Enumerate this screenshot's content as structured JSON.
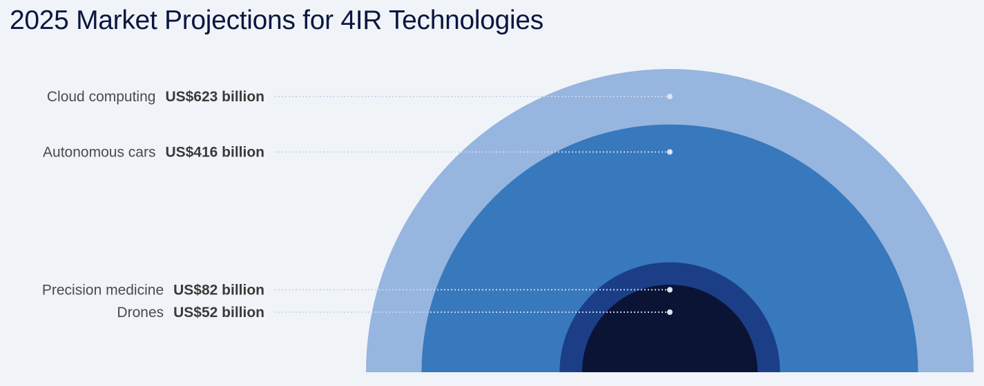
{
  "title": "2025 Market Projections for 4IR Technologies",
  "chart_data": {
    "type": "nested-semicircles",
    "title": "2025 Market Projections for 4IR Technologies",
    "unit": "US$ billion",
    "series": [
      {
        "name": "Cloud computing",
        "value": 623,
        "value_label": "US$623 billion",
        "color": "#96b5df"
      },
      {
        "name": "Autonomous cars",
        "value": 416,
        "value_label": "US$416 billion",
        "color": "#3878bc"
      },
      {
        "name": "Precision medicine",
        "value": 82,
        "value_label": "US$82 billion",
        "color": "#1b3e87"
      },
      {
        "name": "Drones",
        "value": 52,
        "value_label": "US$52 billion",
        "color": "#0b1435"
      }
    ],
    "leader_line_color": "#c9d6ec",
    "marker_color": "#dde5f3"
  }
}
